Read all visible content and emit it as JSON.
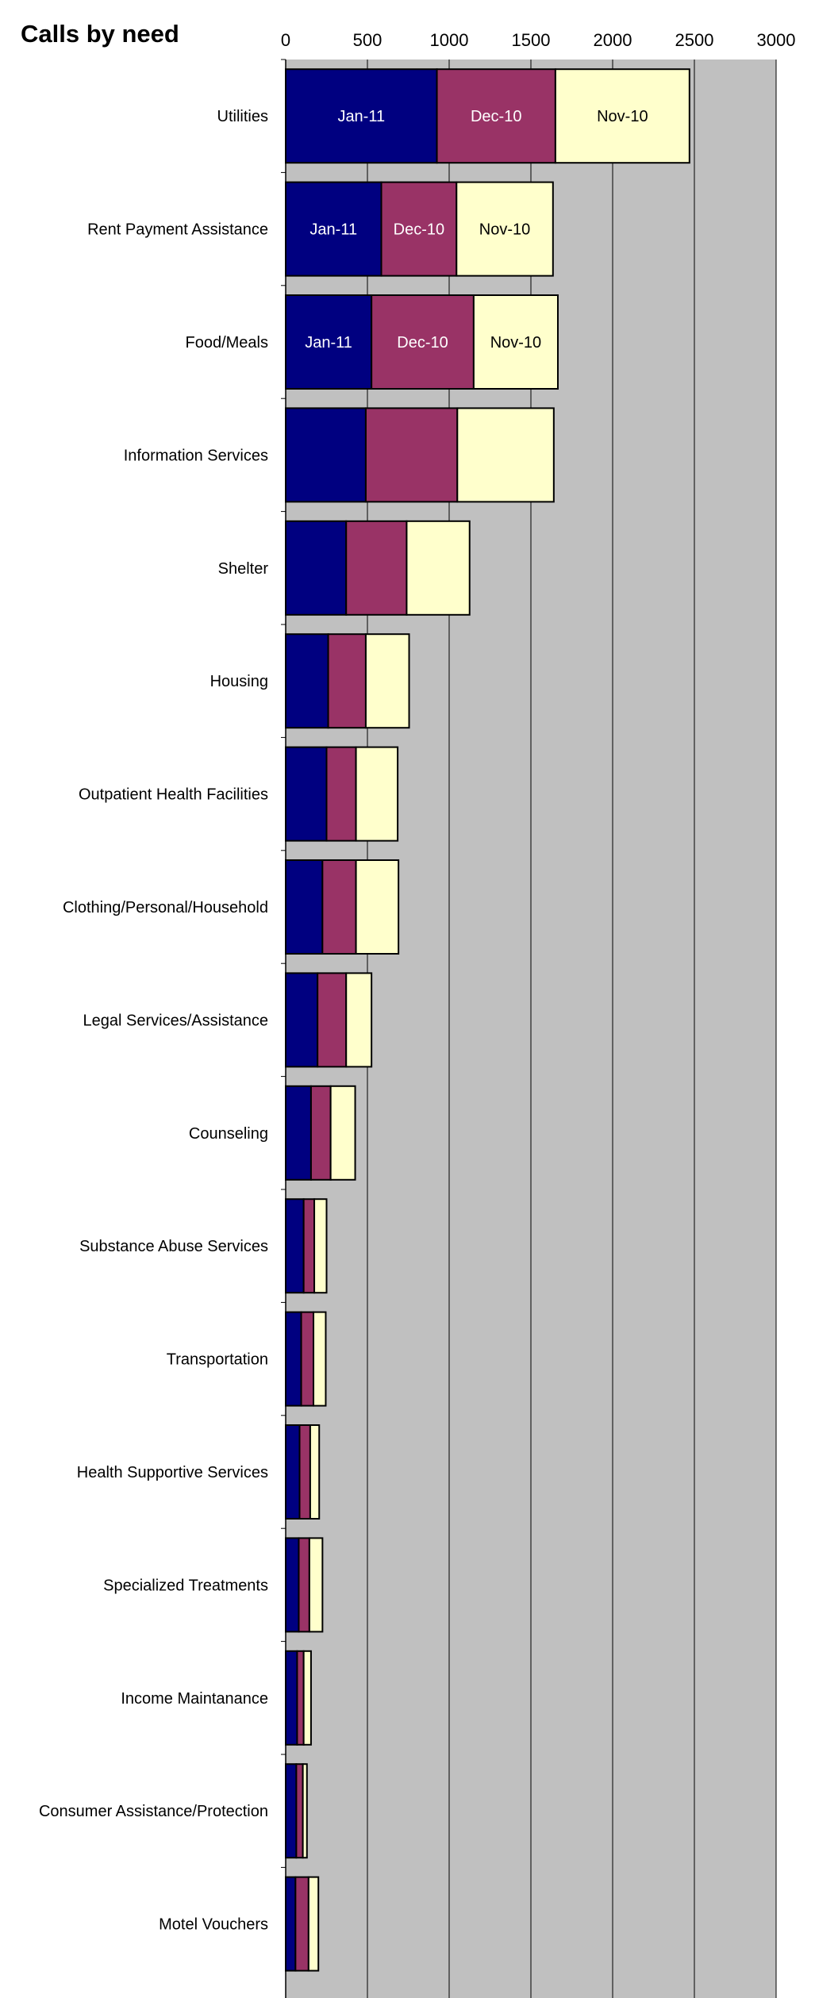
{
  "chart_data": {
    "type": "bar",
    "orientation": "horizontal",
    "stacked": true,
    "title": "Calls by need",
    "xlim": [
      0,
      3000
    ],
    "xticks": [
      0,
      500,
      1000,
      1500,
      2000,
      2500,
      3000
    ],
    "grid": true,
    "legend": "none",
    "categories": [
      "Utilities",
      "Rent Payment Assistance",
      "Food/Meals",
      "Information Services",
      "Shelter",
      "Housing",
      "Outpatient Health Facilities",
      "Clothing/Personal/Household",
      "Legal Services/Assistance",
      "Counseling",
      "Substance Abuse Services",
      "Transportation",
      "Health Supportive Services",
      "Specialized Treatments",
      "Income Maintanance",
      "Consumer Assistance/Protection",
      "Motel Vouchers"
    ],
    "series": [
      {
        "name": "Jan-11",
        "color": "#000080",
        "values": [
          925,
          585,
          525,
          490,
          370,
          260,
          250,
          225,
          195,
          155,
          110,
          95,
          85,
          80,
          70,
          65,
          60
        ],
        "labeled_rows": [
          0,
          1,
          2
        ]
      },
      {
        "name": "Dec-10",
        "color": "#993366",
        "values": [
          725,
          460,
          625,
          560,
          370,
          230,
          180,
          205,
          175,
          120,
          65,
          75,
          65,
          65,
          40,
          40,
          80
        ],
        "labeled_rows": [
          0,
          1,
          2
        ]
      },
      {
        "name": "Nov-10",
        "color": "#ffffcc",
        "values": [
          820,
          590,
          515,
          590,
          385,
          265,
          255,
          260,
          155,
          150,
          75,
          75,
          55,
          80,
          45,
          25,
          60
        ],
        "labeled_rows": [
          0,
          1,
          2
        ]
      }
    ]
  },
  "colors": {
    "plot_background": "#c0c0c0",
    "gridline": "#000000",
    "bar_outline": "#000000",
    "label_on_dark": "#ffffff",
    "label_on_light": "#000000"
  }
}
